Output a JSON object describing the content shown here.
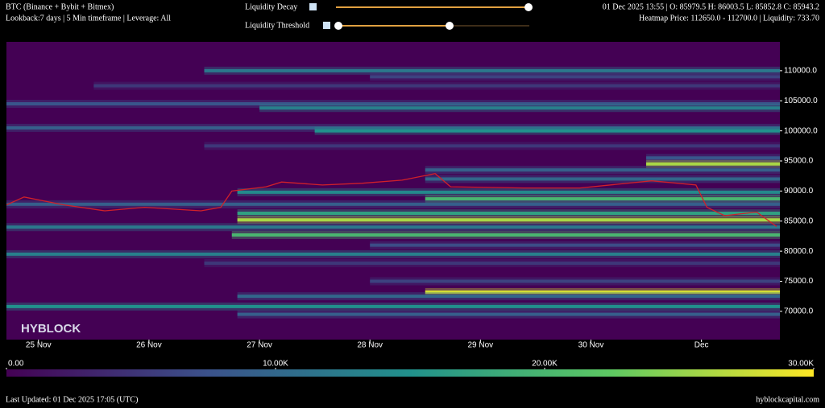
{
  "header": {
    "title": "BTC (Binance + Bybit + Bitmex)",
    "subtitle": "Lookback:7 days | 5 Min timeframe | Leverage: All",
    "decay_label": "Liquidity Decay",
    "threshold_label": "Liquidity Threshold",
    "ohlc": "01 Dec 2025 13:55 | O: 85979.5 H: 86003.5 L: 85852.8 C: 85943.2",
    "hover": "Heatmap Price: 112650.0 - 112700.0 | Liquidity: 733.70"
  },
  "footer": {
    "updated": "Last Updated: 01 Dec 2025 17:05 (UTC)",
    "site": "hyblockcapital.com"
  },
  "chart_data": {
    "type": "heatmap",
    "watermark": "HYBLOCK",
    "xlim": [
      -0.29,
      6.71
    ],
    "xticks": [
      {
        "value": 0,
        "label": "25 Nov"
      },
      {
        "value": 1,
        "label": "26 Nov"
      },
      {
        "value": 2,
        "label": "27 Nov"
      },
      {
        "value": 3,
        "label": "28 Nov"
      },
      {
        "value": 4,
        "label": "29 Nov"
      },
      {
        "value": 5,
        "label": "30 Nov"
      },
      {
        "value": 6,
        "label": "Dec"
      }
    ],
    "ylim": [
      65300,
      114800
    ],
    "yticks": [
      {
        "value": 70000,
        "label": "70000.0"
      },
      {
        "value": 75000,
        "label": "75000.0"
      },
      {
        "value": 80000,
        "label": "80000.0"
      },
      {
        "value": 85000,
        "label": "85000.0"
      },
      {
        "value": 90000,
        "label": "90000.0"
      },
      {
        "value": 95000,
        "label": "95000.0"
      },
      {
        "value": 100000,
        "label": "100000.0"
      },
      {
        "value": 105000,
        "label": "105000.0"
      },
      {
        "value": 110000,
        "label": "110000.0"
      }
    ],
    "colorscale": [
      "#440154",
      "#3b528b",
      "#21918c",
      "#5ec962",
      "#fde725"
    ],
    "clim": [
      0,
      30000
    ],
    "cticks": [
      {
        "value": 0,
        "label": "0.00"
      },
      {
        "value": 10000,
        "label": "10.00K"
      },
      {
        "value": 20000,
        "label": "20.00K"
      },
      {
        "value": 30000,
        "label": "30.00K"
      }
    ],
    "bands": {
      "price": [
        110000,
        109000,
        107500,
        104500,
        103800,
        100500,
        100000,
        97500,
        95500,
        94500,
        93500,
        92000,
        89800,
        88700,
        87800,
        86300,
        85200,
        84000,
        82700,
        81000,
        79500,
        78000,
        75000,
        73200,
        72500,
        70800,
        69500
      ],
      "liquidity": [
        12000,
        6000,
        5000,
        8000,
        13000,
        9000,
        15000,
        5000,
        8000,
        26000,
        9000,
        10000,
        14000,
        20000,
        9000,
        17000,
        26000,
        12000,
        20000,
        7000,
        13000,
        5000,
        6000,
        28000,
        10000,
        15000,
        9000
      ],
      "start": [
        1.5,
        3,
        0.5,
        -0.29,
        2,
        -0.29,
        2.5,
        1.5,
        5.5,
        5.5,
        3.5,
        3.5,
        1.8,
        3.5,
        -0.29,
        1.8,
        1.8,
        -0.29,
        1.75,
        3,
        -0.29,
        1.5,
        3,
        3.5,
        1.8,
        -0.29,
        1.8
      ]
    },
    "price": {
      "color": "#d0202a",
      "x": [
        -0.29,
        -0.13,
        0.23,
        0.6,
        0.96,
        1.47,
        1.65,
        1.75,
        2.06,
        2.2,
        2.57,
        2.93,
        3.29,
        3.59,
        3.73,
        4.39,
        4.9,
        5.55,
        5.95,
        6.05,
        6.21,
        6.5,
        6.68
      ],
      "values": [
        87700,
        89000,
        87700,
        86700,
        87300,
        86700,
        87300,
        90000,
        90700,
        91500,
        91000,
        91300,
        91800,
        92900,
        90700,
        90500,
        90500,
        91700,
        91000,
        87300,
        85900,
        86500,
        84100
      ]
    }
  }
}
